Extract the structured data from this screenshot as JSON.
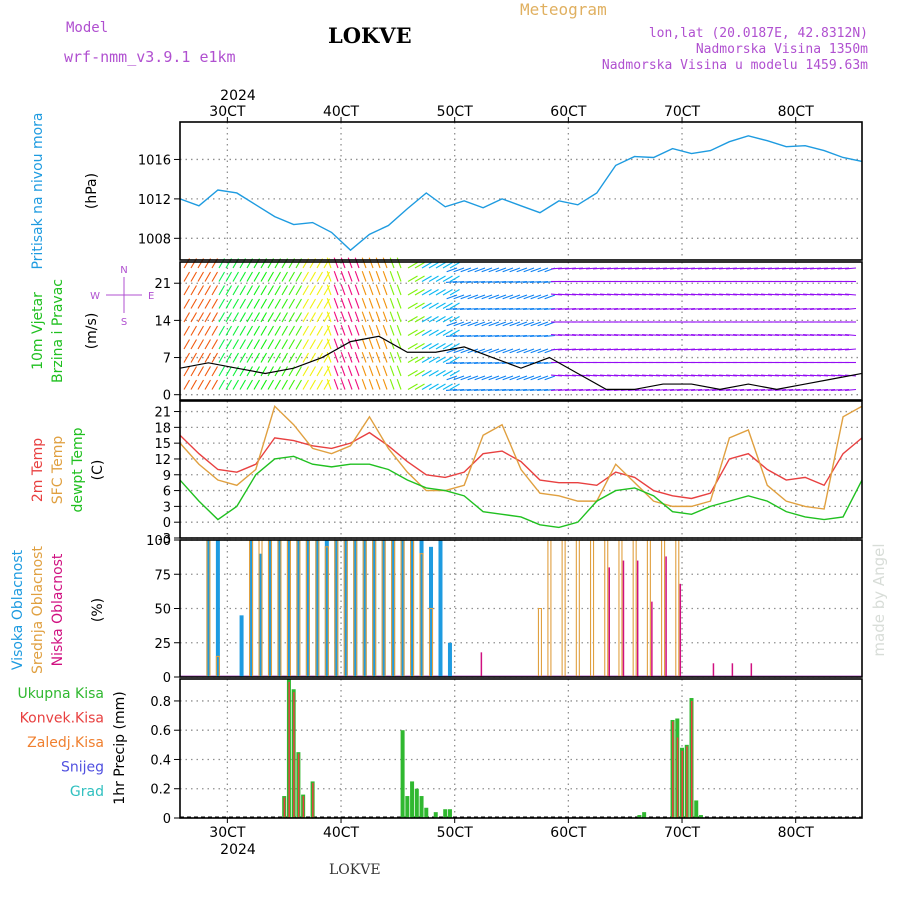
{
  "header": {
    "model_label": "Model",
    "model_name": "wrf-nmm_v3.9.1  e1km",
    "title": "LOKVE",
    "meteogram_label": "Meteogram",
    "lonlat": "lon,lat (20.0187E, 42.8312N)",
    "elevation": "Nadmorska Visina 1350m",
    "model_elevation": "Nadmorska Visina u modelu 1459.63m",
    "top_year": "2024",
    "bottom_year": "2024",
    "footer": "LOKVE",
    "credit": "made by Angel"
  },
  "colors": {
    "pressure": "#1e9be0",
    "temp2m": "#e84040",
    "sfc_temp": "#e0a040",
    "dewpoint": "#20c020",
    "high_cloud": "#1e9be0",
    "mid_cloud": "#e0a040",
    "low_cloud": "#d01080",
    "precip_total": "#30b830",
    "precip_conv": "#e84040",
    "grid": "#909090"
  },
  "chart_data": [
    {
      "type": "line",
      "panel": "pressure",
      "ylabel_1": "Pritisak na nivou mora",
      "ylabel_2": "(hPa)",
      "yticks": [
        "1008",
        "1012",
        "1016"
      ],
      "ylim": [
        1005.8,
        1019.8
      ],
      "x": [
        "2024-10-02 14:00",
        "2024-10-02 18:00",
        "2024-10-02 22:00",
        "2024-10-03 02:00",
        "2024-10-03 06:00",
        "2024-10-03 10:00",
        "2024-10-03 14:00",
        "2024-10-03 18:00",
        "2024-10-03 22:00",
        "2024-10-04 02:00",
        "2024-10-04 06:00",
        "2024-10-04 10:00",
        "2024-10-04 14:00",
        "2024-10-04 18:00",
        "2024-10-04 22:00",
        "2024-10-05 02:00",
        "2024-10-05 06:00",
        "2024-10-05 10:00",
        "2024-10-05 14:00",
        "2024-10-05 18:00",
        "2024-10-05 22:00",
        "2024-10-06 02:00",
        "2024-10-06 06:00",
        "2024-10-06 10:00",
        "2024-10-06 14:00",
        "2024-10-06 18:00",
        "2024-10-06 22:00",
        "2024-10-07 02:00",
        "2024-10-07 06:00",
        "2024-10-07 10:00",
        "2024-10-07 14:00",
        "2024-10-07 18:00",
        "2024-10-07 22:00",
        "2024-10-08 02:00",
        "2024-10-08 06:00",
        "2024-10-08 10:00",
        "2024-10-08 14:00"
      ],
      "series": [
        {
          "values": [
            1012.0,
            1011.3,
            1012.9,
            1012.6,
            1011.4,
            1010.2,
            1009.4,
            1009.6,
            1008.6,
            1006.8,
            1008.4,
            1009.3,
            1011.0,
            1012.6,
            1011.2,
            1011.8,
            1011.1,
            1012.0,
            1011.3,
            1010.6,
            1011.8,
            1011.4,
            1012.6,
            1015.4,
            1016.3,
            1016.2,
            1017.1,
            1016.6,
            1016.9,
            1017.8,
            1018.4,
            1017.9,
            1017.3,
            1017.4,
            1016.9,
            1016.2,
            1015.8
          ]
        }
      ]
    },
    {
      "type": "scatter",
      "panel": "wind",
      "ylabel_1": "10m Vjetar",
      "ylabel_2": "Brzina i Pravac",
      "ylabel_3": "(m/s)",
      "compass": {
        "n": "N",
        "s": "S",
        "e": "E",
        "w": "W"
      },
      "yticks": [
        "0",
        "7",
        "14",
        "21"
      ],
      "ylim": [
        -1,
        25
      ],
      "x": [
        "2024-10-02 14:00",
        "2024-10-02 20:00",
        "2024-10-03 02:00",
        "2024-10-03 08:00",
        "2024-10-03 14:00",
        "2024-10-03 20:00",
        "2024-10-04 02:00",
        "2024-10-04 08:00",
        "2024-10-04 14:00",
        "2024-10-04 20:00",
        "2024-10-05 02:00",
        "2024-10-05 08:00",
        "2024-10-05 14:00",
        "2024-10-05 20:00",
        "2024-10-06 02:00",
        "2024-10-06 08:00",
        "2024-10-06 14:00",
        "2024-10-06 20:00",
        "2024-10-07 02:00",
        "2024-10-07 08:00",
        "2024-10-07 14:00",
        "2024-10-07 20:00",
        "2024-10-08 02:00",
        "2024-10-08 08:00",
        "2024-10-08 14:00"
      ],
      "series": [
        {
          "name": "speed",
          "values": [
            5,
            6,
            5,
            4,
            5,
            7,
            10,
            11,
            8,
            8,
            9,
            7,
            5,
            7,
            4,
            1,
            1,
            2,
            2,
            1,
            2,
            1,
            2,
            3,
            4
          ]
        }
      ]
    },
    {
      "type": "line",
      "panel": "temperature",
      "ylabel_1": "2m Temp",
      "ylabel_2": "SFC Temp",
      "ylabel_3": "dewpt Temp",
      "ylabel_4": "(C)",
      "yticks": [
        "-3",
        "0",
        "3",
        "6",
        "9",
        "12",
        "15",
        "18",
        "21"
      ],
      "ylim": [
        -3,
        23
      ],
      "x": [
        "2024-10-02 14:00",
        "2024-10-02 18:00",
        "2024-10-02 22:00",
        "2024-10-03 02:00",
        "2024-10-03 06:00",
        "2024-10-03 10:00",
        "2024-10-03 14:00",
        "2024-10-03 18:00",
        "2024-10-03 22:00",
        "2024-10-04 02:00",
        "2024-10-04 06:00",
        "2024-10-04 10:00",
        "2024-10-04 14:00",
        "2024-10-04 18:00",
        "2024-10-04 22:00",
        "2024-10-05 02:00",
        "2024-10-05 06:00",
        "2024-10-05 10:00",
        "2024-10-05 14:00",
        "2024-10-05 18:00",
        "2024-10-05 22:00",
        "2024-10-06 02:00",
        "2024-10-06 06:00",
        "2024-10-06 10:00",
        "2024-10-06 14:00",
        "2024-10-06 18:00",
        "2024-10-06 22:00",
        "2024-10-07 02:00",
        "2024-10-07 06:00",
        "2024-10-07 10:00",
        "2024-10-07 14:00",
        "2024-10-07 18:00",
        "2024-10-07 22:00",
        "2024-10-08 02:00",
        "2024-10-08 06:00",
        "2024-10-08 10:00",
        "2024-10-08 14:00"
      ],
      "series": [
        {
          "name": "2m Temp",
          "values": [
            16.5,
            13.0,
            10.0,
            9.5,
            11.0,
            16.0,
            15.5,
            14.5,
            14.0,
            15.0,
            17.0,
            14.5,
            11.5,
            9.0,
            8.5,
            9.5,
            13.0,
            13.5,
            11.5,
            8.0,
            7.5,
            7.5,
            7.0,
            9.5,
            8.5,
            6.0,
            5.0,
            4.5,
            5.5,
            12.0,
            13.0,
            10.0,
            8.0,
            8.5,
            7.0,
            13.0,
            16.0
          ]
        },
        {
          "name": "SFC Temp",
          "values": [
            15.0,
            11.0,
            8.0,
            7.0,
            10.0,
            22.0,
            18.5,
            14.0,
            13.0,
            14.5,
            20.0,
            14.0,
            9.5,
            6.0,
            6.0,
            7.0,
            16.5,
            18.5,
            10.0,
            5.5,
            5.0,
            4.0,
            4.0,
            11.0,
            7.5,
            4.0,
            3.0,
            3.0,
            4.0,
            16.0,
            17.5,
            7.0,
            4.0,
            3.0,
            2.5,
            20.0,
            22.0
          ]
        },
        {
          "name": "dewpt Temp",
          "values": [
            8.0,
            4.0,
            0.5,
            3.0,
            9.0,
            12.0,
            12.5,
            11.0,
            10.5,
            11.0,
            11.0,
            10.0,
            8.0,
            6.5,
            6.0,
            5.0,
            2.0,
            1.5,
            1.0,
            -0.5,
            -1.0,
            0.0,
            4.0,
            6.0,
            6.5,
            5.0,
            2.0,
            1.5,
            3.0,
            4.0,
            5.0,
            4.0,
            2.0,
            1.0,
            0.5,
            1.0,
            8.0
          ]
        }
      ]
    },
    {
      "type": "bar",
      "panel": "cloud",
      "ylabel_1": "Visoka Oblacnost",
      "ylabel_2": "Srednja Oblacnost",
      "ylabel_3": "Niska Oblacnost",
      "ylabel_4": "(%)",
      "yticks": [
        "0",
        "25",
        "50",
        "75",
        "100"
      ],
      "ylim": [
        0,
        100
      ],
      "x": [
        "2024-10-02 20:00",
        "2024-10-02 22:00",
        "2024-10-03 00:00",
        "2024-10-03 03:00",
        "2024-10-03 05:00",
        "2024-10-03 07:00",
        "2024-10-03 09:00",
        "2024-10-03 11:00",
        "2024-10-03 13:00",
        "2024-10-03 15:00",
        "2024-10-03 17:00",
        "2024-10-03 19:00",
        "2024-10-03 21:00",
        "2024-10-03 23:00",
        "2024-10-04 01:00",
        "2024-10-04 03:00",
        "2024-10-04 05:00",
        "2024-10-04 07:00",
        "2024-10-04 09:00",
        "2024-10-04 11:00",
        "2024-10-04 13:00",
        "2024-10-04 15:00",
        "2024-10-04 17:00",
        "2024-10-04 19:00",
        "2024-10-04 21:00",
        "2024-10-04 23:00",
        "2024-10-05 05:00",
        "2024-10-05 18:00",
        "2024-10-05 20:00",
        "2024-10-05 23:00",
        "2024-10-06 02:00",
        "2024-10-06 05:00",
        "2024-10-06 08:00",
        "2024-10-06 11:00",
        "2024-10-06 14:00",
        "2024-10-06 17:00",
        "2024-10-06 20:00",
        "2024-10-06 23:00",
        "2024-10-07 06:00",
        "2024-10-07 10:00",
        "2024-10-07 14:00"
      ],
      "series": [
        {
          "name": "Visoka Oblacnost",
          "values": [
            100,
            100,
            0,
            45,
            100,
            90,
            100,
            100,
            100,
            100,
            100,
            100,
            100,
            100,
            100,
            100,
            100,
            100,
            100,
            100,
            100,
            100,
            100,
            95,
            100,
            25,
            0,
            0,
            0,
            0,
            0,
            0,
            0,
            0,
            0,
            0,
            0,
            0,
            0,
            0,
            0
          ]
        },
        {
          "name": "Srednja Oblacnost",
          "values": [
            100,
            15,
            0,
            0,
            100,
            100,
            100,
            100,
            100,
            100,
            100,
            100,
            95,
            100,
            100,
            100,
            100,
            100,
            100,
            100,
            100,
            100,
            90,
            50,
            0,
            0,
            0,
            50,
            100,
            100,
            100,
            100,
            100,
            100,
            100,
            100,
            100,
            100,
            0,
            0,
            0
          ]
        },
        {
          "name": "Niska Oblacnost",
          "values": [
            0,
            0,
            0,
            0,
            0,
            0,
            0,
            0,
            0,
            0,
            0,
            0,
            0,
            0,
            0,
            0,
            0,
            0,
            0,
            0,
            0,
            0,
            0,
            0,
            0,
            0,
            18,
            0,
            0,
            0,
            0,
            0,
            80,
            85,
            85,
            55,
            88,
            68,
            10,
            10,
            10
          ]
        }
      ]
    },
    {
      "type": "bar",
      "panel": "precip",
      "legend": [
        "Ukupna Kisa",
        "Konvek.Kisa",
        "Zaledj.Kisa",
        "Snijeg",
        "Grad"
      ],
      "legend_colors": [
        "#30b830",
        "#e84040",
        "#f08030",
        "#5050e0",
        "#30c0c0"
      ],
      "ylabel": "1hr Precip (mm)",
      "yticks": [
        "0",
        "0.2",
        "0.4",
        "0.6",
        "0.8"
      ],
      "ylim": [
        0,
        0.95
      ],
      "x": [
        "2024-10-03 12:00",
        "2024-10-03 13:00",
        "2024-10-03 14:00",
        "2024-10-03 15:00",
        "2024-10-03 16:00",
        "2024-10-03 18:00",
        "2024-10-04 13:00",
        "2024-10-04 14:00",
        "2024-10-04 15:00",
        "2024-10-04 16:00",
        "2024-10-04 17:00",
        "2024-10-04 18:00",
        "2024-10-04 20:00",
        "2024-10-04 22:00",
        "2024-10-04 23:00",
        "2024-10-06 15:00",
        "2024-10-06 16:00",
        "2024-10-06 22:00",
        "2024-10-06 23:00",
        "2024-10-07 00:00",
        "2024-10-07 01:00",
        "2024-10-07 02:00",
        "2024-10-07 03:00",
        "2024-10-07 04:00"
      ],
      "series": [
        {
          "name": "Ukupna Kisa",
          "values": [
            0.15,
            0.95,
            0.88,
            0.45,
            0.16,
            0.25,
            0.6,
            0.15,
            0.25,
            0.2,
            0.15,
            0.07,
            0.04,
            0.06,
            0.06,
            0.02,
            0.04,
            0.67,
            0.68,
            0.48,
            0.5,
            0.82,
            0.12,
            0.02
          ]
        },
        {
          "name": "Konvek.Kisa",
          "values": [
            0.14,
            0.93,
            0.86,
            0.44,
            0.15,
            0.24,
            0.0,
            0.0,
            0.0,
            0.0,
            0.0,
            0.0,
            0.0,
            0.0,
            0.0,
            0.0,
            0.0,
            0.66,
            0.55,
            0.46,
            0.49,
            0.8,
            0.0,
            0.0
          ]
        }
      ]
    },
    {
      "type": "table",
      "panel": "time_axis",
      "ticks": [
        "30CT",
        "40CT",
        "50CT",
        "60CT",
        "70CT",
        "80CT"
      ],
      "tick_dates": [
        "2024-10-03 00:00",
        "2024-10-04 00:00",
        "2024-10-05 00:00",
        "2024-10-06 00:00",
        "2024-10-07 00:00",
        "2024-10-08 00:00"
      ],
      "start": "2024-10-02 14:00",
      "end": "2024-10-08 14:00"
    }
  ]
}
